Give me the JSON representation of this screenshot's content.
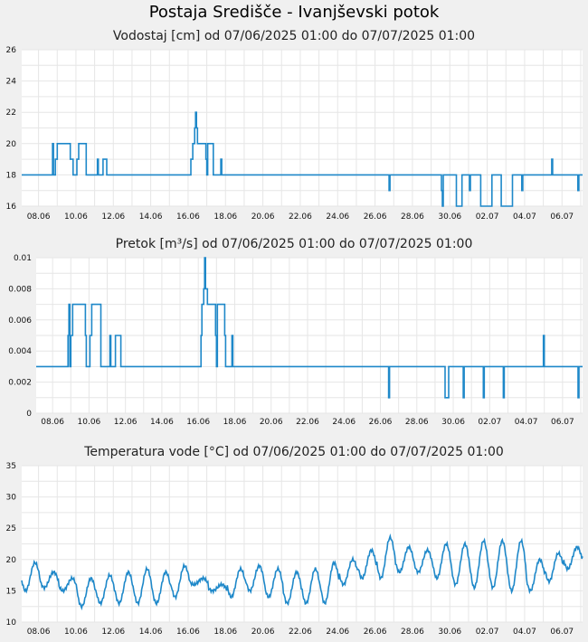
{
  "station_title": "Postaja Središče - Ivanjševski potok",
  "colors": {
    "line": "#1e88c9",
    "grid": "#e6e6e6",
    "plot_bg": "#ffffff",
    "page_bg": "#f0f0f0"
  },
  "chart_data": [
    {
      "type": "line",
      "title": "Vodostaj [cm] od 07/06/2025 01:00 do 07/07/2025 01:00",
      "x_tick_labels": [
        "08.06",
        "10.06",
        "12.06",
        "14.06",
        "16.06",
        "18.06",
        "20.06",
        "22.06",
        "24.06",
        "26.06",
        "28.06",
        "30.06",
        "02.07",
        "04.07",
        "06.07"
      ],
      "y_tick_labels": [
        "16",
        "18",
        "20",
        "22",
        "24",
        "26"
      ],
      "ylim": [
        16,
        26
      ],
      "xlim_days": [
        0,
        30
      ],
      "grid": true,
      "series": [
        {
          "points": [
            [
              0,
              18
            ],
            [
              1.6,
              18
            ],
            [
              1.65,
              20
            ],
            [
              1.7,
              18
            ],
            [
              1.8,
              19
            ],
            [
              1.9,
              20
            ],
            [
              2.5,
              20
            ],
            [
              2.6,
              19
            ],
            [
              2.7,
              19
            ],
            [
              2.75,
              18
            ],
            [
              2.9,
              18
            ],
            [
              2.95,
              19
            ],
            [
              3.05,
              20
            ],
            [
              3.4,
              20
            ],
            [
              3.45,
              18
            ],
            [
              4.0,
              18
            ],
            [
              4.05,
              19
            ],
            [
              4.1,
              18
            ],
            [
              4.3,
              18
            ],
            [
              4.35,
              19
            ],
            [
              4.5,
              19
            ],
            [
              4.55,
              18
            ],
            [
              9.0,
              18
            ],
            [
              9.05,
              19
            ],
            [
              9.15,
              20
            ],
            [
              9.25,
              21
            ],
            [
              9.3,
              22
            ],
            [
              9.35,
              21
            ],
            [
              9.4,
              20
            ],
            [
              9.8,
              20
            ],
            [
              9.85,
              19
            ],
            [
              9.9,
              18
            ],
            [
              9.95,
              20
            ],
            [
              10.2,
              20
            ],
            [
              10.25,
              18
            ],
            [
              10.6,
              18
            ],
            [
              10.65,
              19
            ],
            [
              10.7,
              18
            ],
            [
              19.6,
              18
            ],
            [
              19.65,
              17
            ],
            [
              19.7,
              18
            ],
            [
              22.4,
              18
            ],
            [
              22.45,
              17
            ],
            [
              22.5,
              16
            ],
            [
              22.55,
              18
            ],
            [
              23.2,
              18
            ],
            [
              23.25,
              16
            ],
            [
              23.5,
              16
            ],
            [
              23.55,
              18
            ],
            [
              23.9,
              18
            ],
            [
              23.95,
              17
            ],
            [
              24.0,
              18
            ],
            [
              24.5,
              18
            ],
            [
              24.55,
              16
            ],
            [
              25.1,
              16
            ],
            [
              25.15,
              18
            ],
            [
              25.6,
              18
            ],
            [
              25.65,
              16
            ],
            [
              26.2,
              16
            ],
            [
              26.25,
              18
            ],
            [
              26.7,
              18
            ],
            [
              26.75,
              17
            ],
            [
              26.8,
              18
            ],
            [
              28.3,
              18
            ],
            [
              28.35,
              19
            ],
            [
              28.4,
              18
            ],
            [
              29.7,
              18
            ],
            [
              29.75,
              17
            ],
            [
              29.8,
              18
            ],
            [
              30,
              18
            ]
          ]
        }
      ]
    },
    {
      "type": "line",
      "title": "Pretok [m³/s] od 07/06/2025 01:00 do 07/07/2025 01:00",
      "x_tick_labels": [
        "08.06",
        "10.06",
        "12.06",
        "14.06",
        "16.06",
        "18.06",
        "20.06",
        "22.06",
        "24.06",
        "26.06",
        "28.06",
        "30.06",
        "02.07",
        "04.07",
        "06.07"
      ],
      "y_tick_labels": [
        "0",
        "0.002",
        "0.004",
        "0.006",
        "0.008",
        "0.01"
      ],
      "ylim": [
        0,
        0.01
      ],
      "xlim_days": [
        0,
        30
      ],
      "grid": true,
      "series": [
        {
          "points": [
            [
              0,
              0.003
            ],
            [
              1.7,
              0.003
            ],
            [
              1.75,
              0.005
            ],
            [
              1.8,
              0.007
            ],
            [
              1.85,
              0.003
            ],
            [
              1.9,
              0.005
            ],
            [
              2.0,
              0.007
            ],
            [
              2.6,
              0.007
            ],
            [
              2.7,
              0.005
            ],
            [
              2.75,
              0.003
            ],
            [
              2.9,
              0.003
            ],
            [
              2.95,
              0.005
            ],
            [
              3.05,
              0.007
            ],
            [
              3.5,
              0.007
            ],
            [
              3.55,
              0.003
            ],
            [
              4.0,
              0.003
            ],
            [
              4.05,
              0.005
            ],
            [
              4.1,
              0.003
            ],
            [
              4.3,
              0.003
            ],
            [
              4.35,
              0.005
            ],
            [
              4.6,
              0.005
            ],
            [
              4.65,
              0.003
            ],
            [
              9.0,
              0.003
            ],
            [
              9.05,
              0.005
            ],
            [
              9.1,
              0.007
            ],
            [
              9.2,
              0.008
            ],
            [
              9.25,
              0.01
            ],
            [
              9.3,
              0.008
            ],
            [
              9.4,
              0.007
            ],
            [
              9.8,
              0.007
            ],
            [
              9.85,
              0.005
            ],
            [
              9.9,
              0.003
            ],
            [
              9.95,
              0.007
            ],
            [
              10.3,
              0.007
            ],
            [
              10.35,
              0.005
            ],
            [
              10.4,
              0.003
            ],
            [
              10.7,
              0.003
            ],
            [
              10.75,
              0.005
            ],
            [
              10.8,
              0.003
            ],
            [
              19.3,
              0.003
            ],
            [
              19.35,
              0.001
            ],
            [
              19.4,
              0.003
            ],
            [
              22.4,
              0.003
            ],
            [
              22.45,
              0.001
            ],
            [
              22.6,
              0.001
            ],
            [
              22.65,
              0.003
            ],
            [
              23.4,
              0.003
            ],
            [
              23.45,
              0.001
            ],
            [
              23.5,
              0.003
            ],
            [
              24.5,
              0.003
            ],
            [
              24.55,
              0.001
            ],
            [
              24.6,
              0.003
            ],
            [
              25.6,
              0.003
            ],
            [
              25.65,
              0.001
            ],
            [
              25.7,
              0.003
            ],
            [
              27.8,
              0.003
            ],
            [
              27.85,
              0.005
            ],
            [
              27.9,
              0.003
            ],
            [
              29.7,
              0.003
            ],
            [
              29.75,
              0.001
            ],
            [
              29.8,
              0.003
            ],
            [
              30,
              0.003
            ]
          ]
        }
      ]
    },
    {
      "type": "line",
      "title": "Temperatura vode [°C] od 07/06/2025 01:00 do 07/07/2025 01:00",
      "x_tick_labels": [
        "08.06",
        "10.06",
        "12.06",
        "14.06",
        "16.06",
        "18.06",
        "20.06",
        "22.06",
        "24.06",
        "26.06",
        "28.06",
        "30.06",
        "02.07",
        "04.07",
        "06.07"
      ],
      "y_tick_labels": [
        "10",
        "15",
        "20",
        "25",
        "30",
        "35"
      ],
      "ylim": [
        10,
        35
      ],
      "xlim_days": [
        0,
        30
      ],
      "grid": true,
      "series": [
        {
          "daily_min_max": [
            [
              15,
              19.5
            ],
            [
              15.5,
              18
            ],
            [
              15,
              17
            ],
            [
              12.5,
              17
            ],
            [
              13,
              17.5
            ],
            [
              13,
              18
            ],
            [
              13,
              18.5
            ],
            [
              13,
              18
            ],
            [
              14,
              19
            ],
            [
              16,
              17
            ],
            [
              15,
              16
            ],
            [
              14,
              18.5
            ],
            [
              15,
              19
            ],
            [
              14,
              18.5
            ],
            [
              13,
              18
            ],
            [
              13,
              18.5
            ],
            [
              13,
              19.5
            ],
            [
              16,
              20
            ],
            [
              17,
              21.5
            ],
            [
              17,
              23.5
            ],
            [
              18,
              22
            ],
            [
              18,
              21.5
            ],
            [
              17,
              22.5
            ],
            [
              16,
              22.5
            ],
            [
              15.5,
              23
            ],
            [
              15.5,
              23
            ],
            [
              15,
              23
            ],
            [
              15,
              20
            ],
            [
              16.5,
              21
            ],
            [
              18.5,
              22
            ]
          ]
        }
      ]
    }
  ]
}
